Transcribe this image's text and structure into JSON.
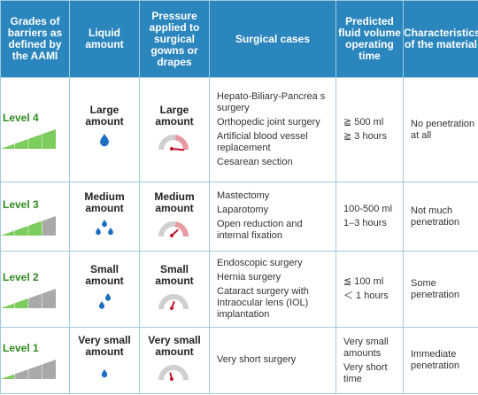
{
  "header": {
    "col1": "Grades of barriers as defined by the AAMI",
    "col2": "Liquid amount",
    "col3": "Pressure applied to surgical gowns or drapes",
    "col4": "Surgical cases",
    "col5": "Predicted fluid volume operating time",
    "col6": "Characteristics of the material"
  },
  "colors": {
    "header_bg": "#2b86bd",
    "level_text": "#2e8a1e",
    "drop": "#1d6fc1",
    "gauge_arc": "#cfcfcf",
    "gauge_needle": "#c0142b"
  },
  "rows": [
    {
      "level": "Level 4",
      "wedge_fill": 1.0,
      "liquid": "Large amount",
      "pressure": "Large amount",
      "gauge_level": 1.0,
      "drops": 1,
      "cases": [
        "Hepato-Biliary-Pancrea s surgery",
        "Orthopedic joint surgery",
        "Artificial blood vessel replacement",
        "Cesarean section"
      ],
      "volume": [
        "≧ 500 ml",
        "≧ 3 hours"
      ],
      "characteristics": "No penetration at all"
    },
    {
      "level": "Level 3",
      "wedge_fill": 0.75,
      "liquid": "Medium amount",
      "pressure": "Medium amount",
      "gauge_level": 0.5,
      "drops": 3,
      "cases": [
        "Mastectomy",
        "Laparotomy",
        "Open reduction and internal fixation"
      ],
      "volume": [
        "100-500 ml",
        "1–3 hours"
      ],
      "characteristics": "Not much penetration"
    },
    {
      "level": "Level 2",
      "wedge_fill": 0.5,
      "liquid": "Small amount",
      "pressure": "Small amount",
      "gauge_level": 0.3,
      "drops": 2,
      "cases": [
        "Endoscopic surgery",
        "Hernia surgery",
        "Cataract surgery with Intraocular lens (IOL) implantation"
      ],
      "volume": [
        "≦ 100 ml",
        "＜ 1 hours"
      ],
      "characteristics": "Some penetration"
    },
    {
      "level": "Level 1",
      "wedge_fill": 0.25,
      "liquid": "Very small amount",
      "pressure": "Very small amount",
      "gauge_level": 0.1,
      "drops": 1,
      "cases": [
        "Very short surgery"
      ],
      "volume": [
        "Very small amounts",
        "Very short time"
      ],
      "characteristics": "Immediate penetration"
    }
  ]
}
